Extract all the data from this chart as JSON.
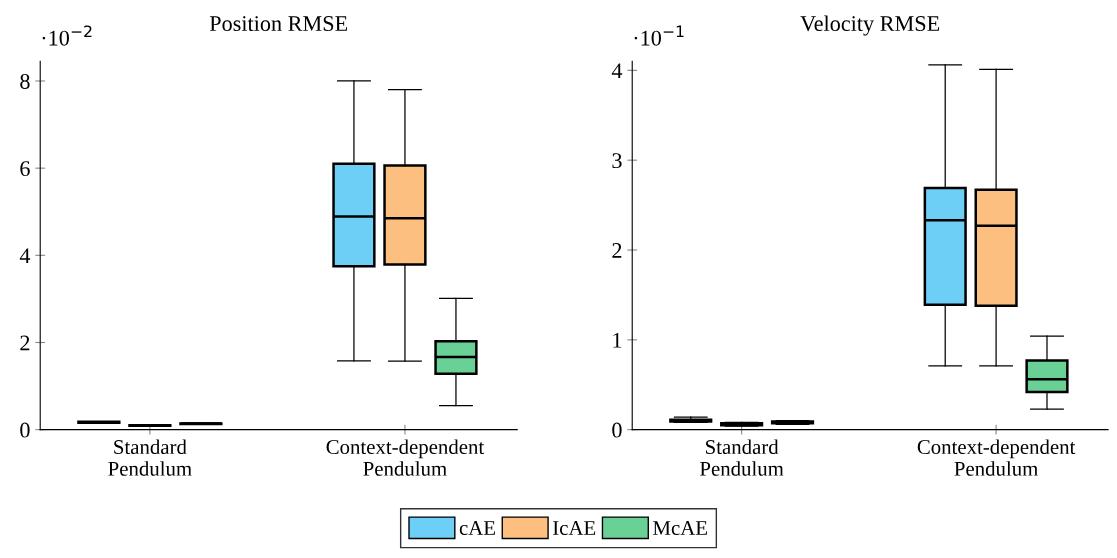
{
  "chart_data": [
    {
      "type": "box",
      "title": "Position RMSE",
      "categories": [
        "Standard\nPendulum",
        "Context-dependent\nPendulum"
      ],
      "ylim": [
        0,
        8.45
      ],
      "yticks": [
        0,
        2,
        4,
        6,
        8
      ],
      "annotations": [
        "·10$^{−2}$"
      ],
      "legend": "bottom",
      "grid": false,
      "series": [
        {
          "name": "cAE",
          "color": "#6dcff6",
          "boxes": [
            {
              "low": 0.16,
              "q1": 0.16,
              "median": 0.17,
              "q3": 0.18,
              "high": 0.18
            },
            {
              "low": 1.58,
              "q1": 3.75,
              "median": 4.89,
              "q3": 6.1,
              "high": 8.0
            }
          ]
        },
        {
          "name": "IcAE",
          "color": "#fdbf80",
          "boxes": [
            {
              "low": 0.08,
              "q1": 0.09,
              "median": 0.1,
              "q3": 0.1,
              "high": 0.11
            },
            {
              "low": 1.57,
              "q1": 3.79,
              "median": 4.85,
              "q3": 6.06,
              "high": 7.8
            }
          ]
        },
        {
          "name": "McAE",
          "color": "#69d196",
          "boxes": [
            {
              "low": 0.12,
              "q1": 0.13,
              "median": 0.14,
              "q3": 0.14,
              "high": 0.15
            },
            {
              "low": 0.55,
              "q1": 1.28,
              "median": 1.67,
              "q3": 2.03,
              "high": 3.01
            }
          ]
        }
      ]
    },
    {
      "type": "box",
      "title": "Velocity RMSE",
      "categories": [
        "Standard\nPendulum",
        "Context-dependent\nPendulum"
      ],
      "ylim": [
        0,
        4.1
      ],
      "yticks": [
        0,
        1,
        2,
        3,
        4
      ],
      "annotations": [
        "·10$^{−1}$"
      ],
      "legend": "bottom",
      "grid": false,
      "series": [
        {
          "name": "cAE",
          "color": "#6dcff6",
          "boxes": [
            {
              "low": 0.08,
              "q1": 0.09,
              "median": 0.1,
              "q3": 0.11,
              "high": 0.14
            },
            {
              "low": 0.71,
              "q1": 1.39,
              "median": 2.33,
              "q3": 2.69,
              "high": 4.06
            }
          ]
        },
        {
          "name": "IcAE",
          "color": "#fdbf80",
          "boxes": [
            {
              "low": 0.04,
              "q1": 0.05,
              "median": 0.06,
              "q3": 0.07,
              "high": 0.08
            },
            {
              "low": 0.71,
              "q1": 1.38,
              "median": 2.27,
              "q3": 2.67,
              "high": 4.01
            }
          ]
        },
        {
          "name": "McAE",
          "color": "#69d196",
          "boxes": [
            {
              "low": 0.06,
              "q1": 0.07,
              "median": 0.08,
              "q3": 0.09,
              "high": 0.1
            },
            {
              "low": 0.23,
              "q1": 0.42,
              "median": 0.56,
              "q3": 0.77,
              "high": 1.04
            }
          ]
        }
      ]
    }
  ]
}
